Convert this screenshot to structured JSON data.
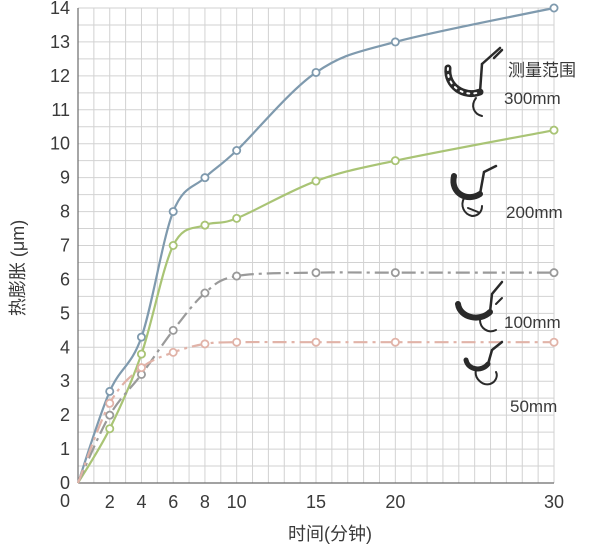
{
  "chart_data": {
    "type": "line",
    "title": "",
    "xlabel": "时间(分钟)",
    "ylabel": "热膨胀 (μm)",
    "xlim": [
      0,
      30
    ],
    "ylim": [
      0,
      14
    ],
    "grid": true,
    "x_ticks": [
      2,
      4,
      6,
      8,
      10,
      15,
      20,
      30
    ],
    "y_ticks": [
      0,
      1,
      2,
      3,
      4,
      5,
      6,
      7,
      8,
      9,
      10,
      11,
      12,
      13,
      14
    ],
    "legend_title": "测量范围",
    "series": [
      {
        "name": "300mm",
        "color": "#7f9aae",
        "dash": "solid",
        "x": [
          0,
          2,
          4,
          6,
          8,
          10,
          15,
          20,
          30
        ],
        "y": [
          0,
          2.7,
          4.3,
          8.0,
          9.0,
          9.8,
          12.1,
          13.0,
          14.0
        ]
      },
      {
        "name": "200mm",
        "color": "#a9c475",
        "dash": "solid",
        "x": [
          0,
          2,
          4,
          6,
          8,
          10,
          15,
          20,
          30
        ],
        "y": [
          0,
          1.6,
          3.8,
          7.0,
          7.6,
          7.8,
          8.9,
          9.5,
          10.4
        ]
      },
      {
        "name": "100mm",
        "color": "#9a9a9a",
        "dash": "dashdot",
        "x": [
          0,
          2,
          4,
          6,
          8,
          10,
          15,
          20,
          30
        ],
        "y": [
          0,
          2.0,
          3.2,
          4.5,
          5.6,
          6.1,
          6.2,
          6.2,
          6.2
        ]
      },
      {
        "name": "50mm",
        "color": "#e1b3a8",
        "dash": "dashdot",
        "x": [
          0,
          2,
          4,
          6,
          8,
          10,
          15,
          20,
          30
        ],
        "y": [
          0,
          2.35,
          3.4,
          3.85,
          4.1,
          4.15,
          4.15,
          4.15,
          4.15
        ]
      }
    ]
  }
}
